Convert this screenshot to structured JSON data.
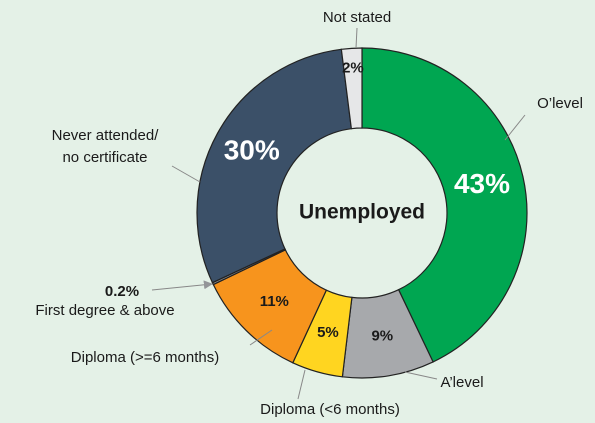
{
  "chart_data": {
    "type": "donut",
    "center_label": "Unemployed",
    "categories": [
      "O’level",
      "A’level",
      "Diploma (<6 months)",
      "Diploma (>=6 months)",
      "First degree & above",
      "Never attended/\nno certificate",
      "Not stated"
    ],
    "values": [
      43,
      9,
      5,
      11,
      0.2,
      30,
      2
    ],
    "value_labels": [
      "43%",
      "9%",
      "5%",
      "11%",
      "0.2%",
      "30%",
      "2%"
    ],
    "colors": [
      "#00a651",
      "#a7a9ac",
      "#ffd520",
      "#f7941d",
      "#939598",
      "#3b5068",
      "#e6e7e8"
    ],
    "label_colors": [
      "#ffffff",
      "#1a1a1a",
      "#1a1a1a",
      "#1a1a1a",
      "#1a1a1a",
      "#ffffff",
      "#1a1a1a"
    ]
  }
}
